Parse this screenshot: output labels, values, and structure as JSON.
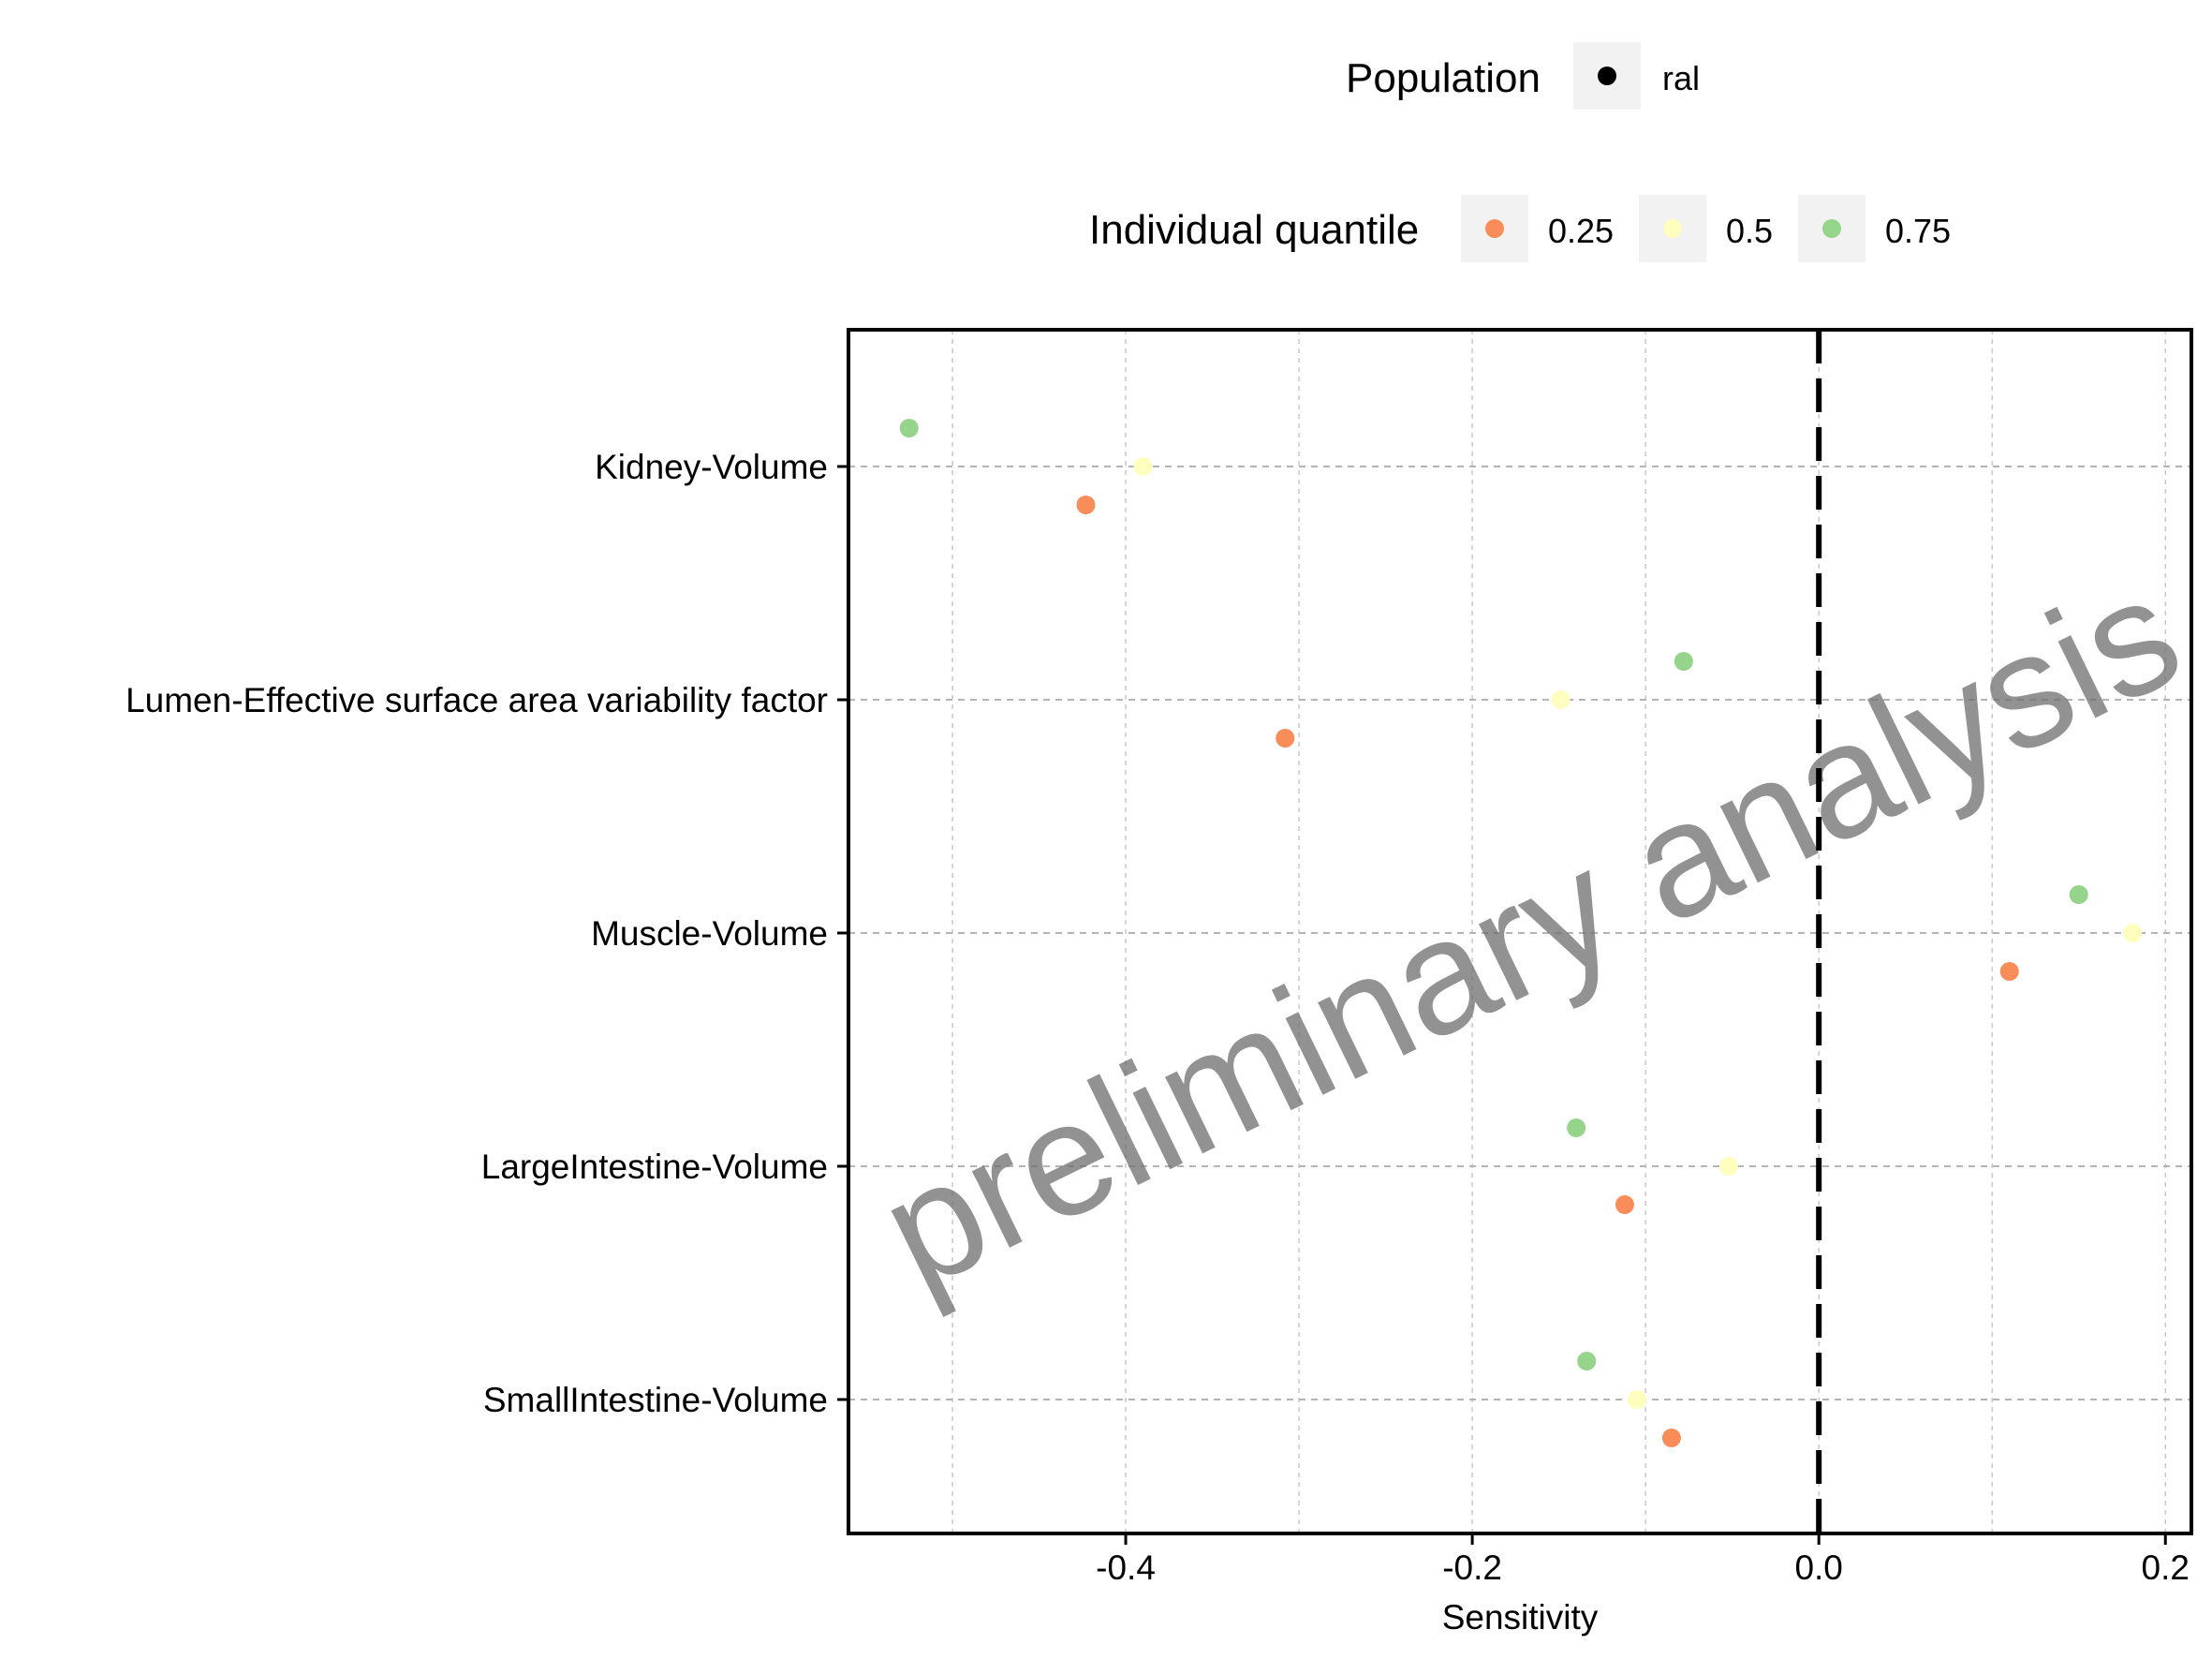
{
  "legend": {
    "population_title": "Population",
    "population_items": [
      {
        "label": "ral",
        "color": "#000000"
      }
    ],
    "quantile_title": "Individual quantile",
    "quantile_items": [
      {
        "label": "0.25",
        "color": "#F88D5A"
      },
      {
        "label": "0.5",
        "color": "#FEFEBE"
      },
      {
        "label": "0.75",
        "color": "#96D48C"
      }
    ]
  },
  "watermark": "preliminary analysis",
  "chart_data": {
    "type": "scatter",
    "xlabel": "Sensitivity",
    "ylabel": "",
    "xlim": [
      -0.56,
      0.215
    ],
    "x_ticks": [
      -0.4,
      -0.2,
      0.0,
      0.2
    ],
    "x_tick_labels": [
      "-0.4",
      "-0.2",
      "0.0",
      "0.2"
    ],
    "grid": true,
    "reference_line": {
      "x": 0.0,
      "style": "dashed"
    },
    "categories": [
      "Kidney-Volume",
      "Lumen-Effective surface area variability factor",
      "Muscle-Volume",
      "LargeIntestine-Volume",
      "SmallIntestine-Volume"
    ],
    "series": [
      {
        "name": "0.25",
        "color": "#F88D5A",
        "values": [
          -0.423,
          -0.308,
          0.11,
          -0.112,
          -0.085
        ]
      },
      {
        "name": "0.5",
        "color": "#FEFEBE",
        "values": [
          -0.39,
          -0.149,
          0.181,
          -0.052,
          -0.105
        ]
      },
      {
        "name": "0.75",
        "color": "#96D48C",
        "values": [
          -0.525,
          -0.078,
          0.15,
          -0.14,
          -0.134
        ]
      }
    ]
  }
}
